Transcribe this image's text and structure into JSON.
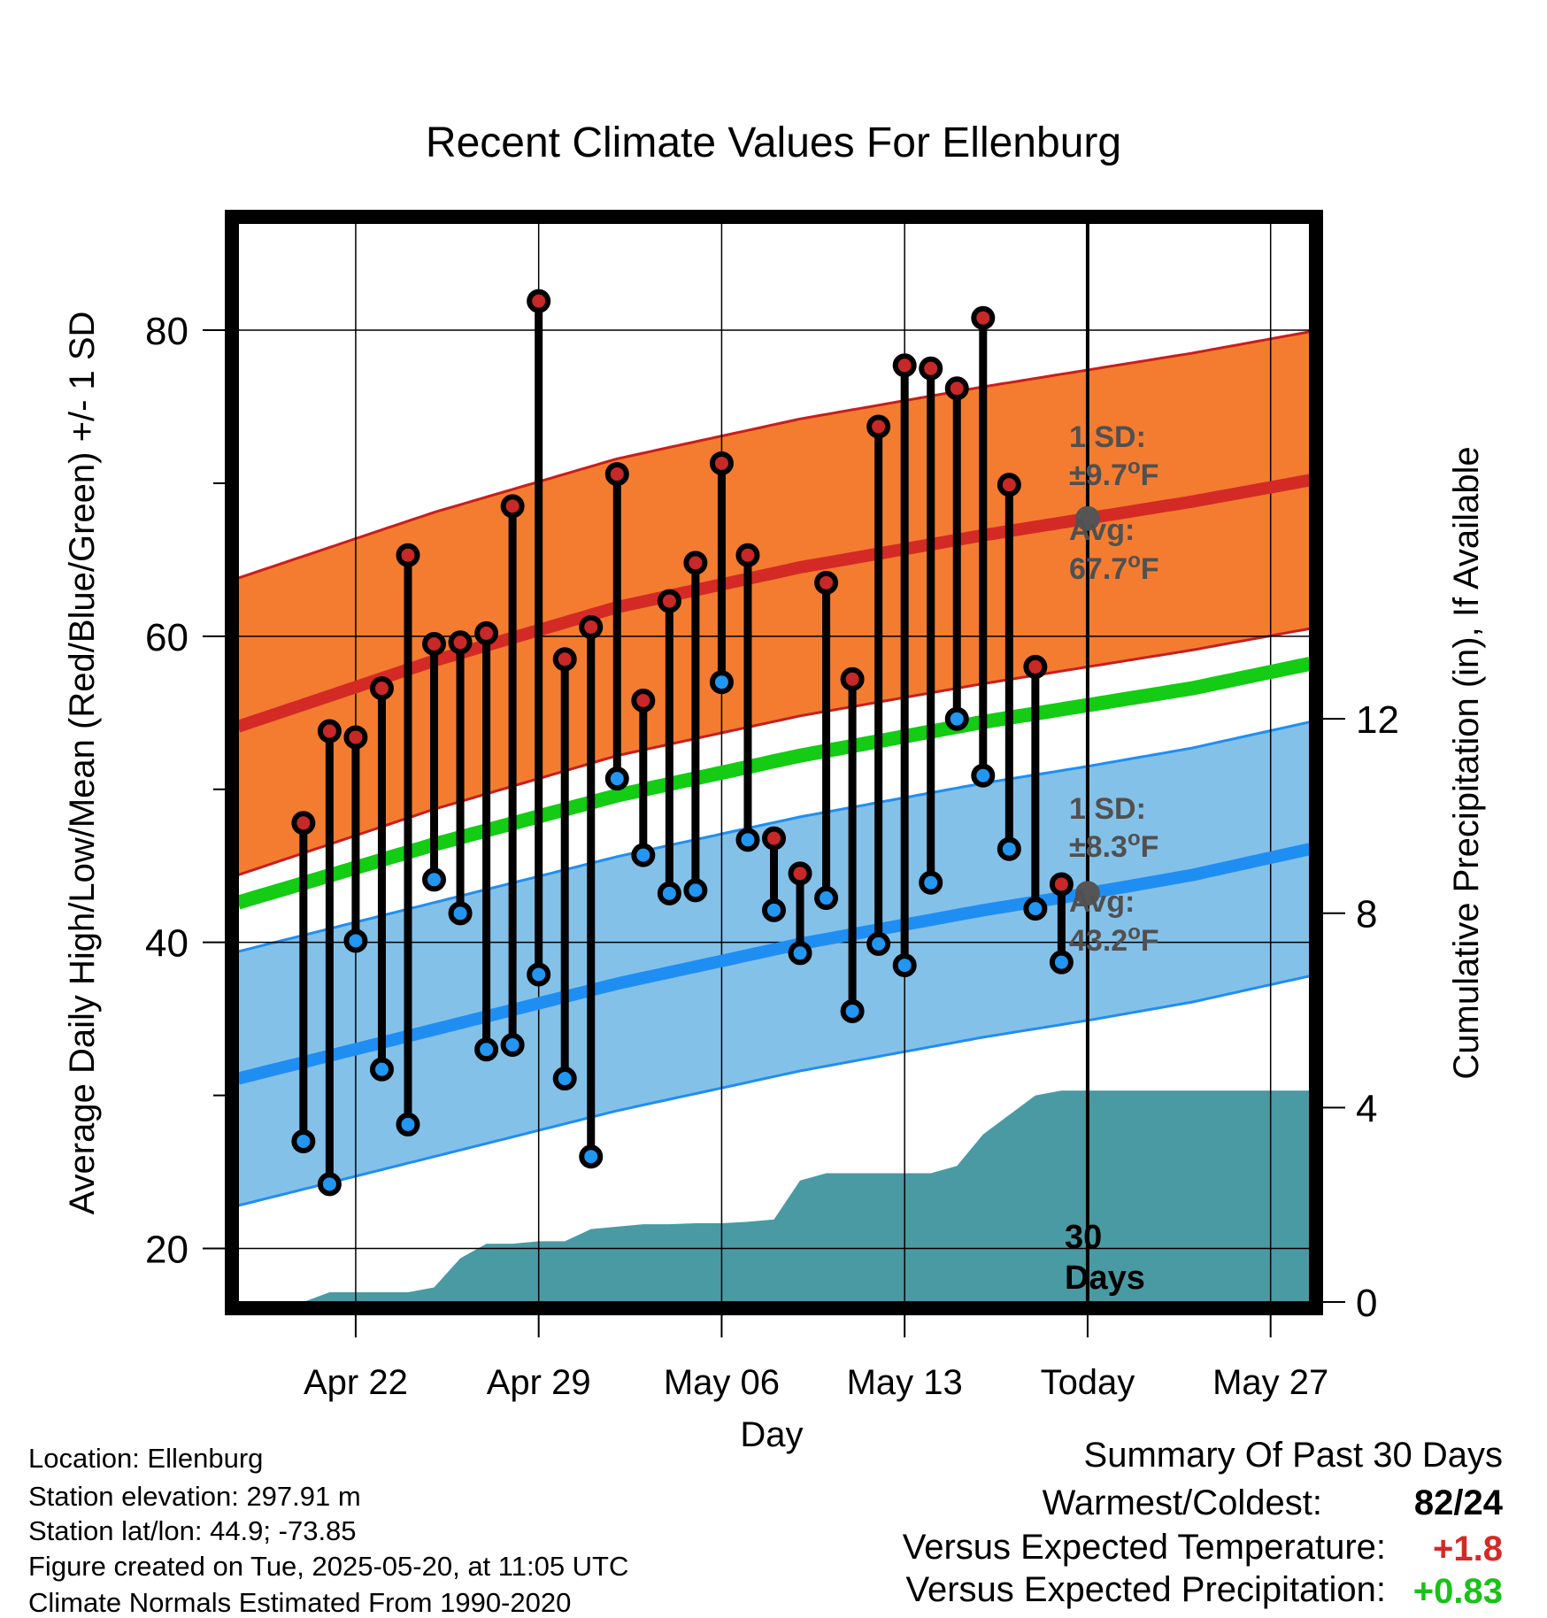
{
  "chart_data": {
    "type": "line",
    "title": "Recent Climate Values For Ellenburg",
    "xlabel": "Day",
    "ylabel_left": "Average Daily High/Low/Mean (Red/Blue/Green) +/- 1 SD",
    "ylabel_right": "Cumulative Precipitation (in), If Available",
    "x_range_days": [
      -32.5,
      8.5
    ],
    "ylim_left": [
      16.5,
      87
    ],
    "ylim_right": [
      0,
      22.2
    ],
    "x_ticks": [
      {
        "day": -28,
        "label": "Apr 22"
      },
      {
        "day": -21,
        "label": "Apr 29"
      },
      {
        "day": -14,
        "label": "May 06"
      },
      {
        "day": -7,
        "label": "May 13"
      },
      {
        "day": 0,
        "label": "Today"
      },
      {
        "day": 7,
        "label": "May 27"
      }
    ],
    "y_ticks_left": [
      20,
      40,
      60,
      80
    ],
    "y_minor_ticks_left": [
      30,
      50,
      70
    ],
    "y_ticks_right": [
      0,
      4,
      8,
      12
    ],
    "normals": {
      "day": [
        -32.5,
        -25,
        -18,
        -11,
        -4,
        0,
        4,
        8.5
      ],
      "high_mean": [
        54.1,
        58.4,
        61.9,
        64.5,
        66.6,
        67.7,
        68.8,
        70.2
      ],
      "high_sd": 9.7,
      "low_mean": [
        31.1,
        34.3,
        37.3,
        39.9,
        42.1,
        43.2,
        44.4,
        46.1
      ],
      "low_sd": 8.3,
      "mean": [
        42.6,
        46.4,
        49.6,
        52.2,
        54.4,
        55.5,
        56.6,
        58.2
      ]
    },
    "daily": {
      "day": [
        -30,
        -29,
        -28,
        -27,
        -26,
        -25,
        -24,
        -23,
        -22,
        -21,
        -20,
        -19,
        -18,
        -17,
        -16,
        -15,
        -14,
        -13,
        -12,
        -11,
        -10,
        -9,
        -8,
        -7,
        -6,
        -5,
        -4,
        -3,
        -2,
        -1
      ],
      "high": [
        47.8,
        53.8,
        53.4,
        56.6,
        65.3,
        59.5,
        59.6,
        60.2,
        68.5,
        81.9,
        58.5,
        60.6,
        70.6,
        55.8,
        62.3,
        64.8,
        71.3,
        65.3,
        46.8,
        44.5,
        63.5,
        57.2,
        73.7,
        77.7,
        77.5,
        76.2,
        80.8,
        69.9,
        58.0,
        43.8
      ],
      "low": [
        27.0,
        24.2,
        40.1,
        31.7,
        28.1,
        44.1,
        41.9,
        33.0,
        33.3,
        37.9,
        31.1,
        26.0,
        50.7,
        45.7,
        43.2,
        43.4,
        57.0,
        46.7,
        42.1,
        39.3,
        42.9,
        35.5,
        39.9,
        38.5,
        43.9,
        54.6,
        50.9,
        46.1,
        42.2,
        38.7
      ]
    },
    "precip": {
      "day": [
        -32.5,
        -31.7,
        -31,
        -30,
        -29,
        -28,
        -27,
        -26,
        -25,
        -24,
        -23,
        -22,
        -21,
        -20,
        -19,
        -18,
        -17,
        -16,
        -15,
        -14,
        -13,
        -12,
        -11,
        -10,
        -9,
        -8,
        -7,
        -6,
        -5,
        -4,
        -3,
        -2,
        -1,
        0,
        8.5
      ],
      "cumulative": [
        0.0,
        0.0,
        0.0,
        0.0,
        0.2,
        0.2,
        0.2,
        0.2,
        0.3,
        0.9,
        1.2,
        1.2,
        1.25,
        1.25,
        1.5,
        1.55,
        1.6,
        1.6,
        1.62,
        1.62,
        1.65,
        1.7,
        2.5,
        2.65,
        2.65,
        2.65,
        2.65,
        2.65,
        2.8,
        3.45,
        3.85,
        4.25,
        4.35,
        4.35,
        4.35
      ]
    },
    "annotations": {
      "high_sd_title": "1 SD:",
      "high_sd_value": "±9.7",
      "high_avg_title": "Avg:",
      "high_avg_value": "67.7",
      "low_sd_title": "1 SD:",
      "low_sd_value": "±8.3",
      "low_avg_title": "Avg:",
      "low_avg_value": "43.2",
      "degree_unit": "o",
      "unit_letter": "F",
      "window_line1": "30",
      "window_line2": "Days"
    },
    "colors": {
      "high_band": "#f47c30",
      "high_line": "#d42a26",
      "high_edge": "#c81e1e",
      "low_band": "#84c1e9",
      "low_line": "#1f8ef2",
      "mean_line": "#13cc13",
      "precip_fill": "#4a9aa4",
      "high_dot": "#c82828",
      "low_dot": "#2196f3",
      "annotation_text": "#505050"
    }
  },
  "info": {
    "location": "Location: Ellenburg",
    "elevation": "Station elevation: 297.91 m",
    "latlon": "Station lat/lon: 44.9; -73.85",
    "created": "Figure created on Tue, 2025-05-20, at 11:05 UTC",
    "normals": "Climate Normals Estimated From 1990-2020"
  },
  "summary": {
    "title": "Summary Of Past 30 Days",
    "warmest_label": "Warmest/Coldest:",
    "warmest_value": "82/24",
    "temp_label": "Versus Expected Temperature:",
    "temp_value": "+1.8",
    "temp_color": "#d42a26",
    "precip_label": "Versus Expected Precipitation:",
    "precip_value": "+0.83",
    "precip_color": "#19c119"
  }
}
